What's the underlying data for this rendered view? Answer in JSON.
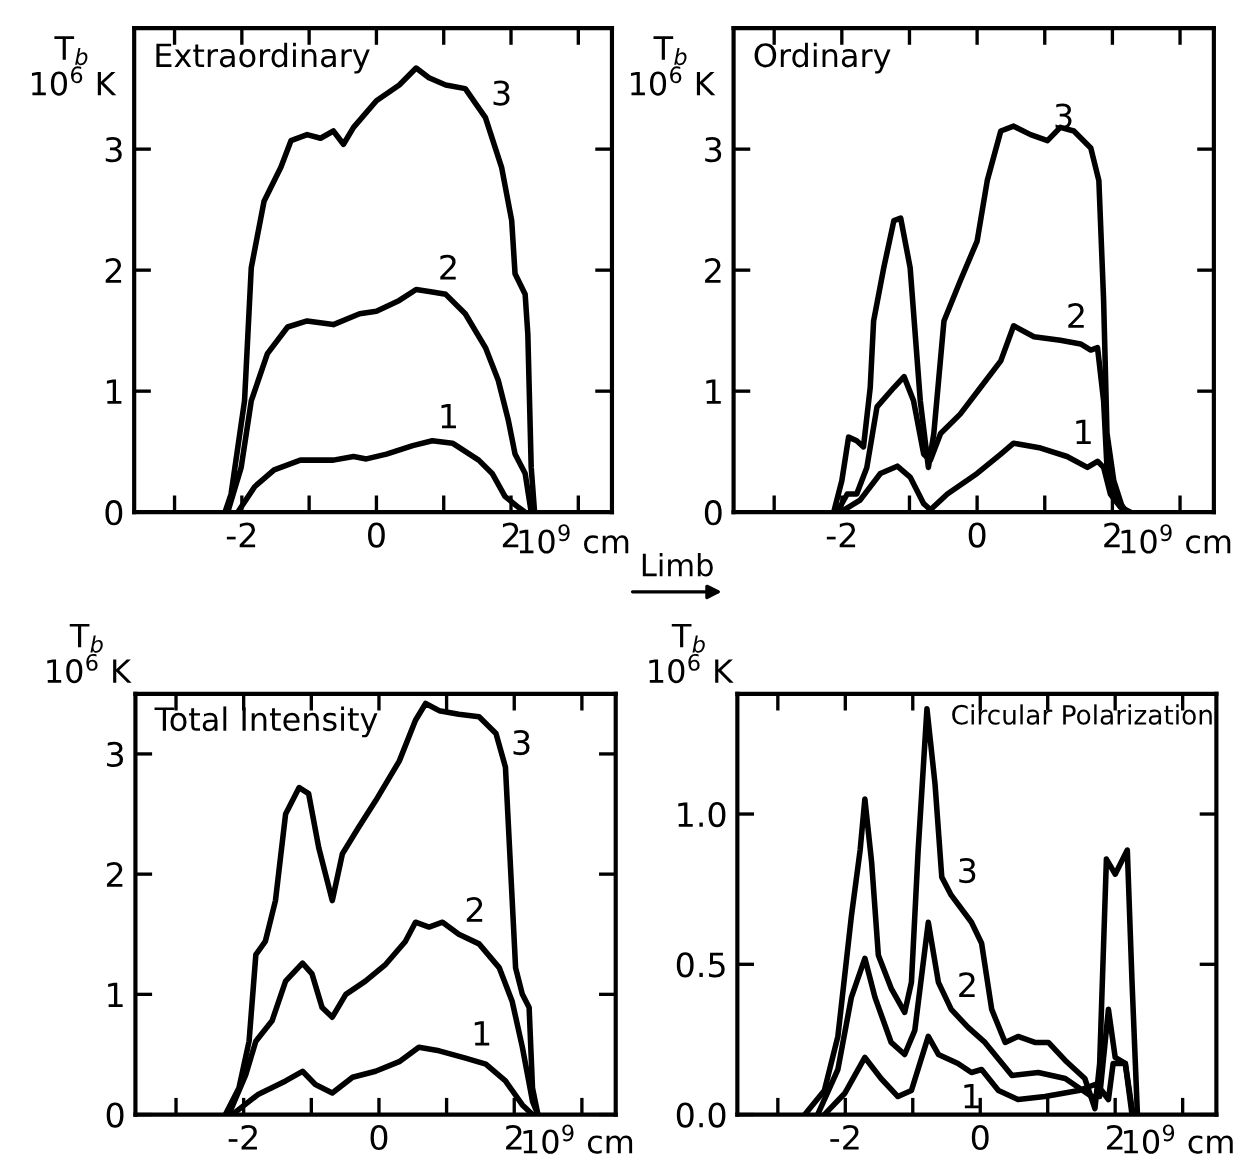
{
  "chart_data": [
    {
      "type": "line",
      "title": "Extraordinary",
      "xlabel": "10$^{9}$ cm",
      "ylabel": "T$_{b}$\n10$^{6}$ K",
      "xlim": [
        -3.6,
        3.5
      ],
      "ylim": [
        0,
        4
      ],
      "xticks": [
        {
          "value": -3,
          "label": null
        },
        -2,
        {
          "value": -1,
          "label": null
        },
        0,
        {
          "value": 1,
          "label": null
        },
        2,
        {
          "value": 3,
          "label": null
        }
      ],
      "yticks": [
        0,
        1,
        2,
        3
      ],
      "series": [
        {
          "color": "#000000",
          "x": [
            -2.06,
            -1.81,
            -1.52,
            -1.13,
            -0.64,
            -0.34,
            -0.15,
            0.15,
            0.54,
            0.83,
            1.13,
            1.52,
            1.72,
            1.91,
            2.11,
            2.21
          ],
          "values": [
            0,
            0.21,
            0.35,
            0.43,
            0.43,
            0.46,
            0.44,
            0.48,
            0.55,
            0.59,
            0.57,
            0.43,
            0.32,
            0.13,
            0.04,
            0
          ]
        },
        {
          "color": "#000000",
          "x": [
            -2.21,
            -2.01,
            -1.86,
            -1.62,
            -1.32,
            -1.03,
            -0.64,
            -0.25,
            0,
            0.34,
            0.59,
            0.83,
            1.03,
            1.32,
            1.62,
            1.81,
            1.96,
            2.06,
            2.21,
            2.3
          ],
          "values": [
            0,
            0.37,
            0.92,
            1.31,
            1.53,
            1.58,
            1.55,
            1.64,
            1.66,
            1.75,
            1.84,
            1.82,
            1.8,
            1.64,
            1.36,
            1.09,
            0.76,
            0.48,
            0.32,
            0
          ]
        },
        {
          "color": "#000000",
          "x": [
            -2.25,
            -2.16,
            -1.96,
            -1.86,
            -1.67,
            -1.42,
            -1.27,
            -1.03,
            -0.83,
            -0.64,
            -0.49,
            -0.34,
            0,
            0.34,
            0.59,
            0.78,
            1.03,
            1.32,
            1.62,
            1.86,
            2.01,
            2.06,
            2.21,
            2.25,
            2.3,
            2.35
          ],
          "values": [
            0,
            0.15,
            0.92,
            2.02,
            2.57,
            2.85,
            3.07,
            3.12,
            3.09,
            3.15,
            3.04,
            3.18,
            3.4,
            3.53,
            3.67,
            3.59,
            3.53,
            3.5,
            3.26,
            2.85,
            2.41,
            1.97,
            1.8,
            1.47,
            0.37,
            0
          ]
        }
      ],
      "annotations": [
        {
          "text": "1",
          "x": 0.83,
          "y": 0.59
        },
        {
          "text": "2",
          "x": 0.83,
          "y": 1.82
        },
        {
          "text": "3",
          "x": 1.62,
          "y": 3.26
        }
      ]
    },
    {
      "type": "line",
      "title": "Ordinary",
      "xlabel": "10$^{9}$ cm",
      "ylabel": "T$_{b}$\n10$^{6}$ K",
      "xlim": [
        -3.6,
        3.5
      ],
      "ylim": [
        0,
        4
      ],
      "xticks": [
        {
          "value": -3,
          "label": null
        },
        -2,
        {
          "value": -1,
          "label": null
        },
        0,
        {
          "value": 1,
          "label": null
        },
        2,
        {
          "value": 3,
          "label": null
        }
      ],
      "yticks": [
        0,
        1,
        2,
        3
      ],
      "series": [
        {
          "color": "#000000",
          "x": [
            -2.02,
            -1.73,
            -1.43,
            -1.18,
            -0.99,
            -0.79,
            -0.69,
            -0.44,
            0,
            0.35,
            0.54,
            0.94,
            1.33,
            1.63,
            1.78,
            1.87,
            1.97,
            2.12,
            2.27
          ],
          "values": [
            0,
            0.1,
            0.32,
            0.38,
            0.29,
            0.07,
            0.02,
            0.15,
            0.32,
            0.48,
            0.57,
            0.53,
            0.46,
            0.37,
            0.42,
            0.37,
            0.15,
            0.04,
            0
          ]
        },
        {
          "color": "#000000",
          "x": [
            -2.07,
            -1.92,
            -1.78,
            -1.63,
            -1.48,
            -1.23,
            -1.08,
            -0.94,
            -0.79,
            -0.69,
            -0.54,
            -0.25,
            0.05,
            0.35,
            0.54,
            0.84,
            1.23,
            1.53,
            1.68,
            1.78,
            1.87,
            1.92,
            2.07,
            2.22
          ],
          "values": [
            0,
            0.15,
            0.15,
            0.37,
            0.87,
            1.03,
            1.12,
            0.92,
            0.48,
            0.43,
            0.65,
            0.81,
            1.03,
            1.25,
            1.54,
            1.45,
            1.42,
            1.39,
            1.34,
            1.36,
            0.92,
            0.37,
            0.1,
            0
          ]
        },
        {
          "color": "#000000",
          "x": [
            -2.12,
            -2.0,
            -1.9,
            -1.78,
            -1.68,
            -1.58,
            -1.53,
            -1.38,
            -1.23,
            -1.13,
            -0.99,
            -0.84,
            -0.72,
            -0.64,
            -0.49,
            -0.25,
            0,
            0.15,
            0.35,
            0.54,
            0.79,
            1.04,
            1.23,
            1.43,
            1.68,
            1.8,
            1.87,
            1.92,
            2.02,
            2.17
          ],
          "values": [
            0,
            0.26,
            0.62,
            0.59,
            0.54,
            1.03,
            1.58,
            2.02,
            2.41,
            2.43,
            2.02,
            0.92,
            0.37,
            0.65,
            1.58,
            1.91,
            2.24,
            2.74,
            3.15,
            3.19,
            3.12,
            3.07,
            3.18,
            3.15,
            3.01,
            2.74,
            1.75,
            0.65,
            0.26,
            0
          ]
        }
      ],
      "annotations": [
        {
          "text": "1",
          "x": 1.33,
          "y": 0.46
        },
        {
          "text": "2",
          "x": 1.23,
          "y": 1.42
        },
        {
          "text": "3",
          "x": 1.04,
          "y": 3.07
        }
      ]
    },
    {
      "type": "line",
      "title": "Total Intensity",
      "xlabel": "10$^{9}$ cm",
      "ylabel": "T$_{b}$\n10$^{6}$ K",
      "xlim": [
        -3.6,
        3.5
      ],
      "ylim": [
        0,
        3.5
      ],
      "xticks": [
        {
          "value": -3,
          "label": null
        },
        -2,
        {
          "value": -1,
          "label": null
        },
        0,
        {
          "value": 1,
          "label": null
        },
        2,
        {
          "value": 3,
          "label": null
        }
      ],
      "yticks": [
        0,
        1,
        2,
        3
      ],
      "series": [
        {
          "color": "#000000",
          "x": [
            -2.17,
            -1.78,
            -1.38,
            -1.13,
            -0.94,
            -0.69,
            -0.39,
            -0.05,
            0.3,
            0.59,
            0.89,
            1.28,
            1.58,
            1.87,
            2.12,
            2.27
          ],
          "values": [
            0,
            0.17,
            0.28,
            0.36,
            0.25,
            0.18,
            0.31,
            0.36,
            0.44,
            0.56,
            0.53,
            0.47,
            0.42,
            0.28,
            0.08,
            0
          ]
        },
        {
          "color": "#000000",
          "x": [
            -2.22,
            -1.97,
            -1.82,
            -1.58,
            -1.38,
            -1.13,
            -0.99,
            -0.84,
            -0.69,
            -0.49,
            -0.2,
            0.1,
            0.39,
            0.54,
            0.74,
            0.94,
            1.18,
            1.48,
            1.78,
            1.97,
            2.12,
            2.27,
            2.35
          ],
          "values": [
            0,
            0.33,
            0.61,
            0.78,
            1.11,
            1.26,
            1.17,
            0.89,
            0.81,
            1.0,
            1.11,
            1.25,
            1.44,
            1.6,
            1.56,
            1.6,
            1.5,
            1.42,
            1.22,
            0.94,
            0.56,
            0.11,
            0
          ]
        },
        {
          "color": "#000000",
          "x": [
            -2.27,
            -2.07,
            -1.92,
            -1.82,
            -1.68,
            -1.53,
            -1.38,
            -1.18,
            -1.04,
            -0.89,
            -0.69,
            -0.54,
            -0.3,
            -0.05,
            0.3,
            0.54,
            0.69,
            0.89,
            1.18,
            1.48,
            1.73,
            1.87,
            1.95,
            2.02,
            2.12,
            2.22,
            2.27,
            2.35
          ],
          "values": [
            0,
            0.22,
            0.61,
            1.33,
            1.44,
            1.78,
            2.5,
            2.72,
            2.67,
            2.22,
            1.78,
            2.17,
            2.39,
            2.61,
            2.94,
            3.28,
            3.42,
            3.36,
            3.33,
            3.31,
            3.17,
            2.89,
            2.0,
            1.22,
            1.0,
            0.89,
            0.22,
            0
          ]
        }
      ],
      "annotations": [
        {
          "text": "1",
          "x": 1.28,
          "y": 0.47
        },
        {
          "text": "2",
          "x": 1.18,
          "y": 1.5
        },
        {
          "text": "3",
          "x": 1.87,
          "y": 2.89
        }
      ]
    },
    {
      "type": "line",
      "title": "Circular Polarization",
      "xlabel": "10$^{9}$ cm",
      "ylabel": "T$_{b}$\n10$^{6}$ K",
      "xlim": [
        -3.6,
        3.5
      ],
      "ylim": [
        0,
        1.4
      ],
      "xticks": [
        {
          "value": -3,
          "label": null
        },
        -2,
        {
          "value": -1,
          "label": null
        },
        0,
        {
          "value": 1,
          "label": null
        },
        2,
        {
          "value": 3,
          "label": null
        }
      ],
      "yticks": [
        {
          "value": 0,
          "label": "0.0"
        },
        0.5,
        {
          "value": 1,
          "label": "1.0"
        }
      ],
      "series": [
        {
          "color": "#000000",
          "x": [
            -2.31,
            -2.01,
            -1.71,
            -1.47,
            -1.22,
            -1.02,
            -0.77,
            -0.62,
            -0.33,
            -0.13,
            0.02,
            0.27,
            0.56,
            0.96,
            1.46,
            1.7,
            1.8,
            1.9,
            1.97,
            2.15,
            2.25,
            2.33
          ],
          "values": [
            0,
            0.07,
            0.19,
            0.12,
            0.06,
            0.08,
            0.26,
            0.2,
            0.17,
            0.14,
            0.15,
            0.08,
            0.05,
            0.06,
            0.08,
            0.1,
            0.08,
            0.05,
            0.17,
            0.17,
            0.02,
            0
          ]
        },
        {
          "color": "#000000",
          "x": [
            -2.41,
            -2.11,
            -1.91,
            -1.71,
            -1.56,
            -1.32,
            -1.12,
            -0.97,
            -0.77,
            -0.62,
            -0.43,
            -0.18,
            0.07,
            0.47,
            0.86,
            1.26,
            1.65,
            1.77,
            1.9,
            2.0,
            2.15,
            2.25
          ],
          "values": [
            0,
            0.15,
            0.39,
            0.52,
            0.39,
            0.24,
            0.2,
            0.28,
            0.64,
            0.44,
            0.35,
            0.29,
            0.24,
            0.13,
            0.14,
            0.12,
            0.06,
            0.06,
            0.35,
            0.19,
            0.17,
            0
          ]
        },
        {
          "color": "#000000",
          "x": [
            -2.6,
            -2.31,
            -2.11,
            -1.91,
            -1.78,
            -1.71,
            -1.61,
            -1.51,
            -1.32,
            -1.12,
            -1.02,
            -0.92,
            -0.79,
            -0.67,
            -0.57,
            -0.43,
            -0.13,
            0.02,
            0.17,
            0.37,
            0.56,
            0.81,
            1.01,
            1.26,
            1.55,
            1.7,
            1.77,
            1.87,
            2.0,
            2.18,
            2.25,
            2.33
          ],
          "values": [
            0,
            0.08,
            0.26,
            0.66,
            0.88,
            1.05,
            0.84,
            0.53,
            0.42,
            0.34,
            0.44,
            0.88,
            1.35,
            1.1,
            0.79,
            0.73,
            0.64,
            0.57,
            0.35,
            0.24,
            0.26,
            0.24,
            0.24,
            0.18,
            0.12,
            0.02,
            0.17,
            0.85,
            0.8,
            0.88,
            0.44,
            0
          ]
        }
      ],
      "annotations": [
        {
          "text": "1",
          "x": -0.33,
          "y": 0.17
        },
        {
          "text": "2",
          "x": -0.43,
          "y": 0.35
        },
        {
          "text": "3",
          "x": -0.43,
          "y": 0.73
        },
        "Limb"
      ]
    }
  ]
}
